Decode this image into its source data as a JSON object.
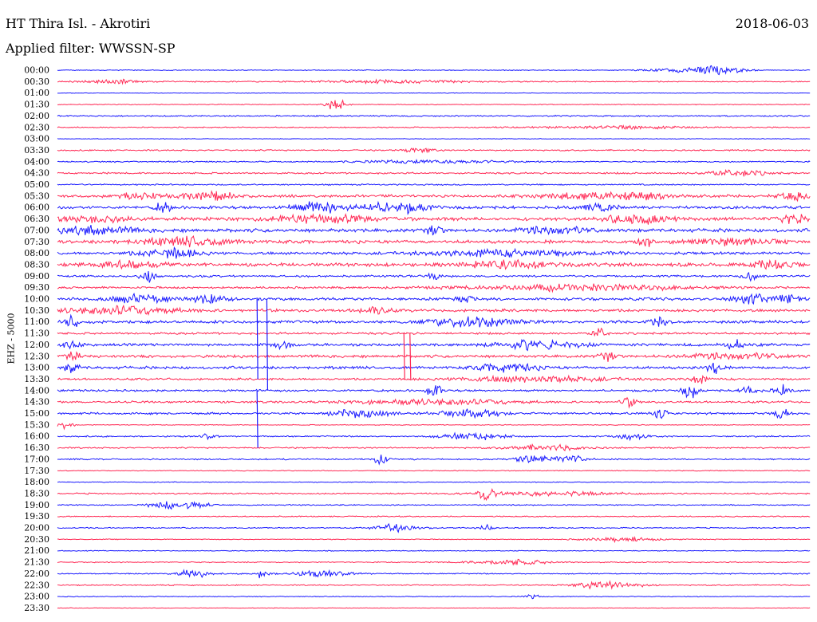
{
  "header": {
    "title": "HT Thira Isl. - Akrotiri",
    "date": "2018-06-03",
    "filter": "Applied filter: WWSSN-SP"
  },
  "chart_data": {
    "type": "line",
    "ylabel": "EHZ - 5000",
    "colors": {
      "blue": "#1a1aff",
      "red": "#ff2a55"
    },
    "rows": [
      {
        "label": "00:00",
        "color": "blue",
        "noise": 0.6,
        "events": [
          [
            0.83,
            2.5,
            0.04
          ],
          [
            0.87,
            4,
            0.02
          ],
          [
            0.9,
            3,
            0.02
          ]
        ]
      },
      {
        "label": "00:30",
        "color": "red",
        "noise": 0.8,
        "events": [
          [
            0.08,
            2,
            0.04
          ],
          [
            0.45,
            1.5,
            0.1
          ]
        ]
      },
      {
        "label": "01:00",
        "color": "blue",
        "noise": 0.4,
        "events": []
      },
      {
        "label": "01:30",
        "color": "red",
        "noise": 0.6,
        "events": [
          [
            0.37,
            6,
            0.012
          ]
        ]
      },
      {
        "label": "02:00",
        "color": "blue",
        "noise": 1.0,
        "events": []
      },
      {
        "label": "02:30",
        "color": "red",
        "noise": 0.8,
        "events": [
          [
            0.75,
            1.5,
            0.1
          ]
        ]
      },
      {
        "label": "03:00",
        "color": "blue",
        "noise": 0.5,
        "events": []
      },
      {
        "label": "03:30",
        "color": "red",
        "noise": 1.0,
        "events": [
          [
            0.48,
            2.5,
            0.02
          ]
        ]
      },
      {
        "label": "04:00",
        "color": "blue",
        "noise": 1.0,
        "events": [
          [
            0.5,
            1.5,
            0.1
          ]
        ]
      },
      {
        "label": "04:30",
        "color": "red",
        "noise": 1.2,
        "events": [
          [
            0.9,
            3,
            0.04
          ]
        ]
      },
      {
        "label": "05:00",
        "color": "blue",
        "noise": 1.0,
        "events": []
      },
      {
        "label": "05:30",
        "color": "red",
        "noise": 2.0,
        "events": [
          [
            0.1,
            3,
            0.03
          ],
          [
            0.2,
            4,
            0.04
          ],
          [
            0.7,
            3,
            0.06
          ],
          [
            0.78,
            4,
            0.03
          ],
          [
            0.98,
            5,
            0.02
          ]
        ]
      },
      {
        "label": "06:00",
        "color": "blue",
        "noise": 2.0,
        "events": [
          [
            0.14,
            5,
            0.01
          ],
          [
            0.35,
            5,
            0.04
          ],
          [
            0.45,
            5,
            0.04
          ],
          [
            0.72,
            5,
            0.02
          ]
        ]
      },
      {
        "label": "06:30",
        "color": "red",
        "noise": 2.5,
        "events": [
          [
            0.05,
            4,
            0.04
          ],
          [
            0.35,
            4,
            0.06
          ],
          [
            0.77,
            5,
            0.04
          ],
          [
            0.98,
            5,
            0.02
          ]
        ]
      },
      {
        "label": "07:00",
        "color": "blue",
        "noise": 2.5,
        "events": [
          [
            0.05,
            4,
            0.05
          ],
          [
            0.5,
            5,
            0.01
          ],
          [
            0.66,
            4,
            0.04
          ]
        ]
      },
      {
        "label": "07:30",
        "color": "red",
        "noise": 2.5,
        "events": [
          [
            0.17,
            4,
            0.06
          ],
          [
            0.78,
            4,
            0.01
          ],
          [
            0.9,
            3,
            0.05
          ]
        ]
      },
      {
        "label": "08:00",
        "color": "blue",
        "noise": 2.0,
        "events": [
          [
            0.15,
            5,
            0.04
          ],
          [
            0.6,
            3,
            0.1
          ]
        ]
      },
      {
        "label": "08:30",
        "color": "red",
        "noise": 2.5,
        "events": [
          [
            0.1,
            4,
            0.04
          ],
          [
            0.6,
            4,
            0.06
          ],
          [
            0.95,
            4,
            0.03
          ]
        ]
      },
      {
        "label": "09:00",
        "color": "blue",
        "noise": 1.5,
        "events": [
          [
            0.12,
            6,
            0.01
          ],
          [
            0.5,
            4,
            0.01
          ],
          [
            0.92,
            5,
            0.01
          ]
        ]
      },
      {
        "label": "09:30",
        "color": "red",
        "noise": 1.5,
        "events": [
          [
            0.7,
            3,
            0.15
          ]
        ]
      },
      {
        "label": "10:00",
        "color": "blue",
        "noise": 2.0,
        "events": [
          [
            0.11,
            4,
            0.04
          ],
          [
            0.2,
            6,
            0.02
          ],
          [
            0.54,
            4,
            0.01
          ],
          [
            0.92,
            6,
            0.02
          ],
          [
            0.97,
            4,
            0.02
          ]
        ]
      },
      {
        "label": "10:30",
        "color": "red",
        "noise": 2.0,
        "events": [
          [
            0.08,
            4,
            0.08
          ],
          [
            0.42,
            4,
            0.02
          ]
        ]
      },
      {
        "label": "11:00",
        "color": "blue",
        "noise": 2.0,
        "events": [
          [
            0.02,
            6,
            0.01
          ],
          [
            0.55,
            5,
            0.06
          ],
          [
            0.8,
            5,
            0.01
          ]
        ]
      },
      {
        "label": "11:30",
        "color": "red",
        "noise": 1.5,
        "events": [
          [
            0.72,
            5,
            0.01
          ]
        ]
      },
      {
        "label": "12:00",
        "color": "blue",
        "noise": 2.0,
        "events": [
          [
            0.02,
            5,
            0.01
          ],
          [
            0.3,
            5,
            0.01
          ],
          [
            0.64,
            4,
            0.06
          ],
          [
            0.9,
            5,
            0.01
          ]
        ]
      },
      {
        "label": "12:30",
        "color": "red",
        "noise": 2.0,
        "events": [
          [
            0.02,
            4,
            0.01
          ],
          [
            0.73,
            5,
            0.01
          ],
          [
            0.9,
            3,
            0.06
          ]
        ]
      },
      {
        "label": "13:00",
        "color": "blue",
        "noise": 2.0,
        "events": [
          [
            0.02,
            5,
            0.01
          ],
          [
            0.6,
            4,
            0.04
          ],
          [
            0.87,
            6,
            0.01
          ]
        ]
      },
      {
        "label": "13:30",
        "color": "red",
        "noise": 1.5,
        "events": [
          [
            0.63,
            3,
            0.1
          ],
          [
            0.85,
            5,
            0.01
          ]
        ]
      },
      {
        "label": "14:00",
        "color": "blue",
        "noise": 1.5,
        "events": [
          [
            0.5,
            6,
            0.01
          ],
          [
            0.84,
            7,
            0.01
          ],
          [
            0.92,
            6,
            0.01
          ],
          [
            0.96,
            6,
            0.01
          ]
        ]
      },
      {
        "label": "14:30",
        "color": "red",
        "noise": 1.5,
        "events": [
          [
            0.5,
            3,
            0.1
          ],
          [
            0.76,
            5,
            0.01
          ]
        ]
      },
      {
        "label": "15:00",
        "color": "blue",
        "noise": 1.5,
        "events": [
          [
            0.4,
            4,
            0.04
          ],
          [
            0.55,
            4,
            0.04
          ],
          [
            0.8,
            5,
            0.01
          ],
          [
            0.96,
            5,
            0.01
          ]
        ]
      },
      {
        "label": "15:30",
        "color": "red",
        "noise": 0.6,
        "events": [
          [
            0.01,
            4,
            0.01
          ]
        ]
      },
      {
        "label": "16:00",
        "color": "blue",
        "noise": 1.0,
        "events": [
          [
            0.2,
            3,
            0.01
          ],
          [
            0.55,
            4,
            0.04
          ],
          [
            0.76,
            3,
            0.02
          ]
        ]
      },
      {
        "label": "16:30",
        "color": "red",
        "noise": 1.0,
        "events": [
          [
            0.65,
            3,
            0.05
          ]
        ]
      },
      {
        "label": "17:00",
        "color": "blue",
        "noise": 1.0,
        "events": [
          [
            0.43,
            5,
            0.01
          ],
          [
            0.63,
            5,
            0.02
          ],
          [
            0.68,
            4,
            0.02
          ]
        ]
      },
      {
        "label": "17:30",
        "color": "red",
        "noise": 0.6,
        "events": []
      },
      {
        "label": "18:00",
        "color": "blue",
        "noise": 0.6,
        "events": []
      },
      {
        "label": "18:30",
        "color": "red",
        "noise": 1.0,
        "events": [
          [
            0.57,
            6,
            0.01
          ],
          [
            0.65,
            2,
            0.1
          ]
        ]
      },
      {
        "label": "19:00",
        "color": "blue",
        "noise": 0.8,
        "events": [
          [
            0.14,
            4,
            0.02
          ],
          [
            0.18,
            4,
            0.02
          ]
        ]
      },
      {
        "label": "19:30",
        "color": "red",
        "noise": 0.8,
        "events": []
      },
      {
        "label": "20:00",
        "color": "blue",
        "noise": 0.8,
        "events": [
          [
            0.45,
            4,
            0.03
          ],
          [
            0.57,
            3,
            0.01
          ]
        ]
      },
      {
        "label": "20:30",
        "color": "red",
        "noise": 0.6,
        "events": [
          [
            0.75,
            2,
            0.05
          ]
        ]
      },
      {
        "label": "21:00",
        "color": "blue",
        "noise": 0.6,
        "events": []
      },
      {
        "label": "21:30",
        "color": "red",
        "noise": 0.8,
        "events": [
          [
            0.6,
            3,
            0.05
          ]
        ]
      },
      {
        "label": "22:00",
        "color": "blue",
        "noise": 0.8,
        "events": [
          [
            0.18,
            4,
            0.02
          ],
          [
            0.27,
            4,
            0.01
          ],
          [
            0.35,
            3,
            0.04
          ]
        ]
      },
      {
        "label": "22:30",
        "color": "red",
        "noise": 0.8,
        "events": [
          [
            0.73,
            4,
            0.04
          ]
        ]
      },
      {
        "label": "23:00",
        "color": "blue",
        "noise": 0.6,
        "events": [
          [
            0.63,
            2,
            0.01
          ]
        ]
      },
      {
        "label": "23:30",
        "color": "red",
        "noise": 0.4,
        "events": []
      }
    ],
    "spikes": [
      {
        "start_row": 20,
        "end_row": 27,
        "x": 0.265,
        "color": "blue"
      },
      {
        "start_row": 20,
        "end_row": 28,
        "x": 0.278,
        "color": "blue"
      },
      {
        "start_row": 23,
        "end_row": 27,
        "x": 0.46,
        "color": "red"
      },
      {
        "start_row": 23,
        "end_row": 27,
        "x": 0.468,
        "color": "red"
      },
      {
        "start_row": 28,
        "end_row": 33,
        "x": 0.265,
        "color": "blue"
      }
    ]
  }
}
